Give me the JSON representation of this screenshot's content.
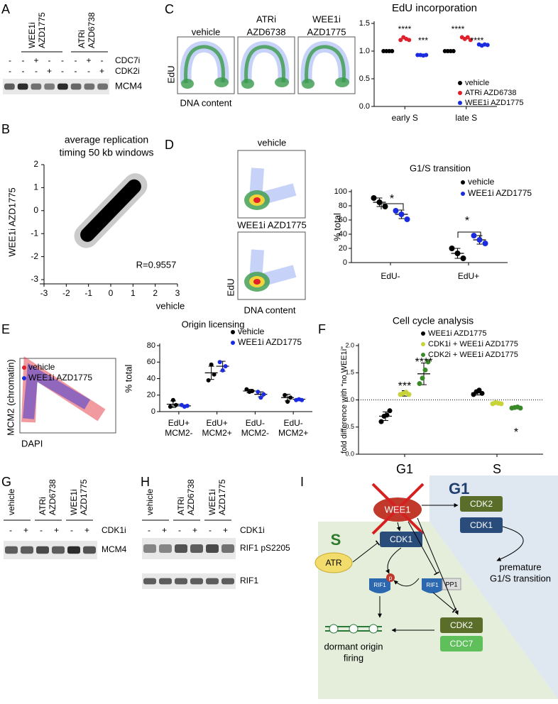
{
  "panel_labels": [
    "A",
    "B",
    "C",
    "D",
    "E",
    "F",
    "G",
    "H",
    "I"
  ],
  "blot_a": {
    "groups": [
      [
        "WEE1i",
        "AZD1775"
      ],
      [
        "ATRi",
        "AZD6738"
      ]
    ],
    "treatments": [
      {
        "name": "CDC7i",
        "signs": [
          "-",
          "-",
          "+",
          "-",
          "-",
          "-",
          "+",
          "-"
        ]
      },
      {
        "name": "CDK2i",
        "signs": [
          "-",
          "-",
          "-",
          "+",
          "-",
          "-",
          "-",
          "+"
        ]
      }
    ],
    "proteins": [
      "MCM4"
    ]
  },
  "flow_c": {
    "conditions": [
      [
        "vehicle"
      ],
      [
        "ATRi",
        "AZD6738"
      ],
      [
        "WEE1i",
        "AZD1775"
      ]
    ],
    "y_label": "EdU",
    "x_label": "DNA content"
  },
  "flow_d": {
    "conditions": [
      "vehicle",
      "WEE1i AZD1775"
    ],
    "y_label": "EdU",
    "x_label": "DNA content"
  },
  "flow_e": {
    "legend": [
      {
        "name": "vehicle",
        "color": "#e0202a"
      },
      {
        "name": "WEE1i AZD1775",
        "color": "#1a2be0"
      }
    ],
    "y_label": "MCM2 (chromatin)",
    "x_label": "DAPI"
  },
  "blot_g": {
    "groups": [
      [
        "vehicle"
      ],
      [
        "ATRi",
        "AZD6738"
      ],
      [
        "WEE1i",
        "AZD1775"
      ]
    ],
    "treatment": "CDK1i",
    "signs": [
      "-",
      "+",
      "-",
      "+",
      "-",
      "+"
    ],
    "proteins": [
      "MCM4"
    ]
  },
  "blot_h": {
    "groups": [
      [
        "vehicle"
      ],
      [
        "ATRi",
        "AZD6738"
      ],
      [
        "WEE1i",
        "AZD1775"
      ]
    ],
    "treatment": "CDK1i",
    "signs": [
      "-",
      "+",
      "-",
      "+",
      "-",
      "+"
    ],
    "proteins": [
      "RIF1 pS2205",
      "RIF1"
    ]
  },
  "diagram_i": {
    "phases": [
      "G1",
      "S"
    ],
    "nodes": [
      "WEE1",
      "CDK2",
      "CDK1",
      "CDK1",
      "ATR",
      "RIF1",
      "p",
      "RIF1",
      "PP1",
      "CDK2",
      "CDC7"
    ],
    "outcomes": [
      [
        "premature",
        "G1/S transition"
      ],
      [
        "dormant origin",
        "firing"
      ]
    ]
  },
  "chart_data": [
    {
      "type": "dot",
      "title": "EdU incorporation",
      "categories": [
        "early S",
        "late S"
      ],
      "series": [
        {
          "name": "vehicle",
          "color": "#000000",
          "values": [
            [
              1.0,
              1.0,
              1.0,
              1.0
            ],
            [
              1.0,
              1.0,
              1.0,
              1.0
            ]
          ]
        },
        {
          "name": "ATRi AZD6738",
          "color": "#e0202a",
          "values": [
            [
              1.2,
              1.25,
              1.22,
              1.2
            ],
            [
              1.25,
              1.22,
              1.25,
              1.2
            ]
          ]
        },
        {
          "name": "WEE1i AZD1775",
          "color": "#1a2be0",
          "values": [
            [
              0.93,
              0.93,
              0.92,
              0.93
            ],
            [
              1.12,
              1.1,
              1.12,
              1.11
            ]
          ]
        }
      ],
      "ylim": [
        0,
        1.5
      ],
      "yticks": [
        {
          "value": 0,
          "label": "0.0"
        },
        0.5,
        {
          "value": 1,
          "label": "1.0"
        },
        1.5
      ],
      "annotations": [
        "****",
        "***",
        "****",
        "****"
      ]
    },
    {
      "type": "density",
      "title": [
        "average replication",
        "timing 50 kb windows"
      ],
      "x_label": "vehicle",
      "y_label": "WEE1i AZD1775",
      "annotations": [
        "R=0.9557"
      ],
      "xlim": [
        -3,
        3
      ],
      "xticks": [
        -3,
        -2,
        -1,
        0,
        1,
        2,
        3
      ],
      "ylim": [
        -3,
        2
      ],
      "yticks": [
        -3,
        -2,
        -1,
        0,
        1,
        2
      ]
    },
    {
      "type": "dot",
      "title": "G1/S transition",
      "y_label": "% total",
      "categories": [
        "EdU-",
        "EdU+"
      ],
      "series": [
        {
          "name": "vehicle",
          "color": "#000000",
          "values": [
            [
              91,
              85,
              79
            ],
            [
              20,
              13,
              6
            ]
          ],
          "means": [
            85,
            13
          ],
          "errors": [
            6,
            7
          ]
        },
        {
          "name": "WEE1i AZD1775",
          "color": "#1a2be0",
          "values": [
            [
              73,
              68,
              61
            ],
            [
              38,
              32,
              27
            ]
          ],
          "means": [
            68,
            32
          ],
          "errors": [
            6,
            6
          ]
        }
      ],
      "ylim": [
        0,
        100
      ],
      "yticks": [
        0,
        20,
        40,
        60,
        80,
        100
      ],
      "annotations": [
        "*",
        "*"
      ]
    },
    {
      "type": "dot",
      "title": "Origin licensing",
      "y_label": "% total",
      "categories": [
        [
          "EdU+",
          "MCM2-"
        ],
        [
          "EdU+",
          "MCM2+"
        ],
        [
          "EdU-",
          "MCM2-"
        ],
        [
          "EdU-",
          "MCM2+"
        ]
      ],
      "series": [
        {
          "name": "vehicle",
          "color": "#000000",
          "values": [
            [
              6,
              14,
              8
            ],
            [
              38,
              57,
              45
            ],
            [
              27,
              24,
              25
            ],
            [
              20,
              12,
              17
            ]
          ],
          "means": [
            9,
            47,
            25,
            17
          ],
          "errors": [
            4,
            8,
            2,
            4
          ]
        },
        {
          "name": "WEE1i AZD1775",
          "color": "#1a2be0",
          "values": [
            [
              8,
              6,
              7
            ],
            [
              60,
              50,
              55
            ],
            [
              24,
              17,
              21
            ],
            [
              14,
              15,
              14
            ]
          ],
          "means": [
            7,
            55,
            21,
            15
          ],
          "errors": [
            1,
            6,
            3,
            1
          ]
        }
      ],
      "ylim": [
        0,
        80
      ],
      "yticks": [
        0,
        20,
        40,
        60,
        80
      ]
    },
    {
      "type": "dot",
      "title": "Cell cycle analysis",
      "y_label": "fold difference with “no WEE1i”",
      "categories": [
        "G1",
        "S"
      ],
      "series": [
        {
          "name": "WEE1i AZD1775",
          "color": "#000000",
          "values": [
            [
              0.6,
              0.7,
              0.72,
              0.8
            ],
            [
              1.1,
              1.15,
              1.18,
              1.12
            ]
          ],
          "means": [
            0.7,
            1.13
          ],
          "errors": [
            0.08,
            0.04
          ]
        },
        {
          "name": "CDK1i + WEE1i AZD1775",
          "color": "#c8d33a",
          "values": [
            [
              1.1,
              1.12,
              1.14,
              1.1
            ],
            [
              0.93,
              0.95,
              0.94,
              0.93
            ]
          ],
          "means": [
            1.12,
            0.94
          ],
          "errors": [
            0.05,
            0.02
          ]
        },
        {
          "name": "CDK2i + WEE1i AZD1775",
          "color": "#3b8a2a",
          "values": [
            [
              1.3,
              1.4,
              1.55,
              1.7
            ],
            [
              0.85,
              0.86,
              0.87,
              0.85
            ]
          ],
          "means": [
            1.48,
            0.86
          ],
          "errors": [
            0.2,
            0.02
          ]
        }
      ],
      "ylim": [
        0,
        2
      ],
      "yticks": [
        {
          "value": 0,
          "label": "0.0"
        },
        0.5,
        {
          "value": 1,
          "label": "1.0"
        },
        1.5,
        {
          "value": 2,
          "label": "2.0"
        }
      ],
      "reference_line": 1,
      "annotations": [
        "***",
        "****",
        "*"
      ]
    }
  ]
}
